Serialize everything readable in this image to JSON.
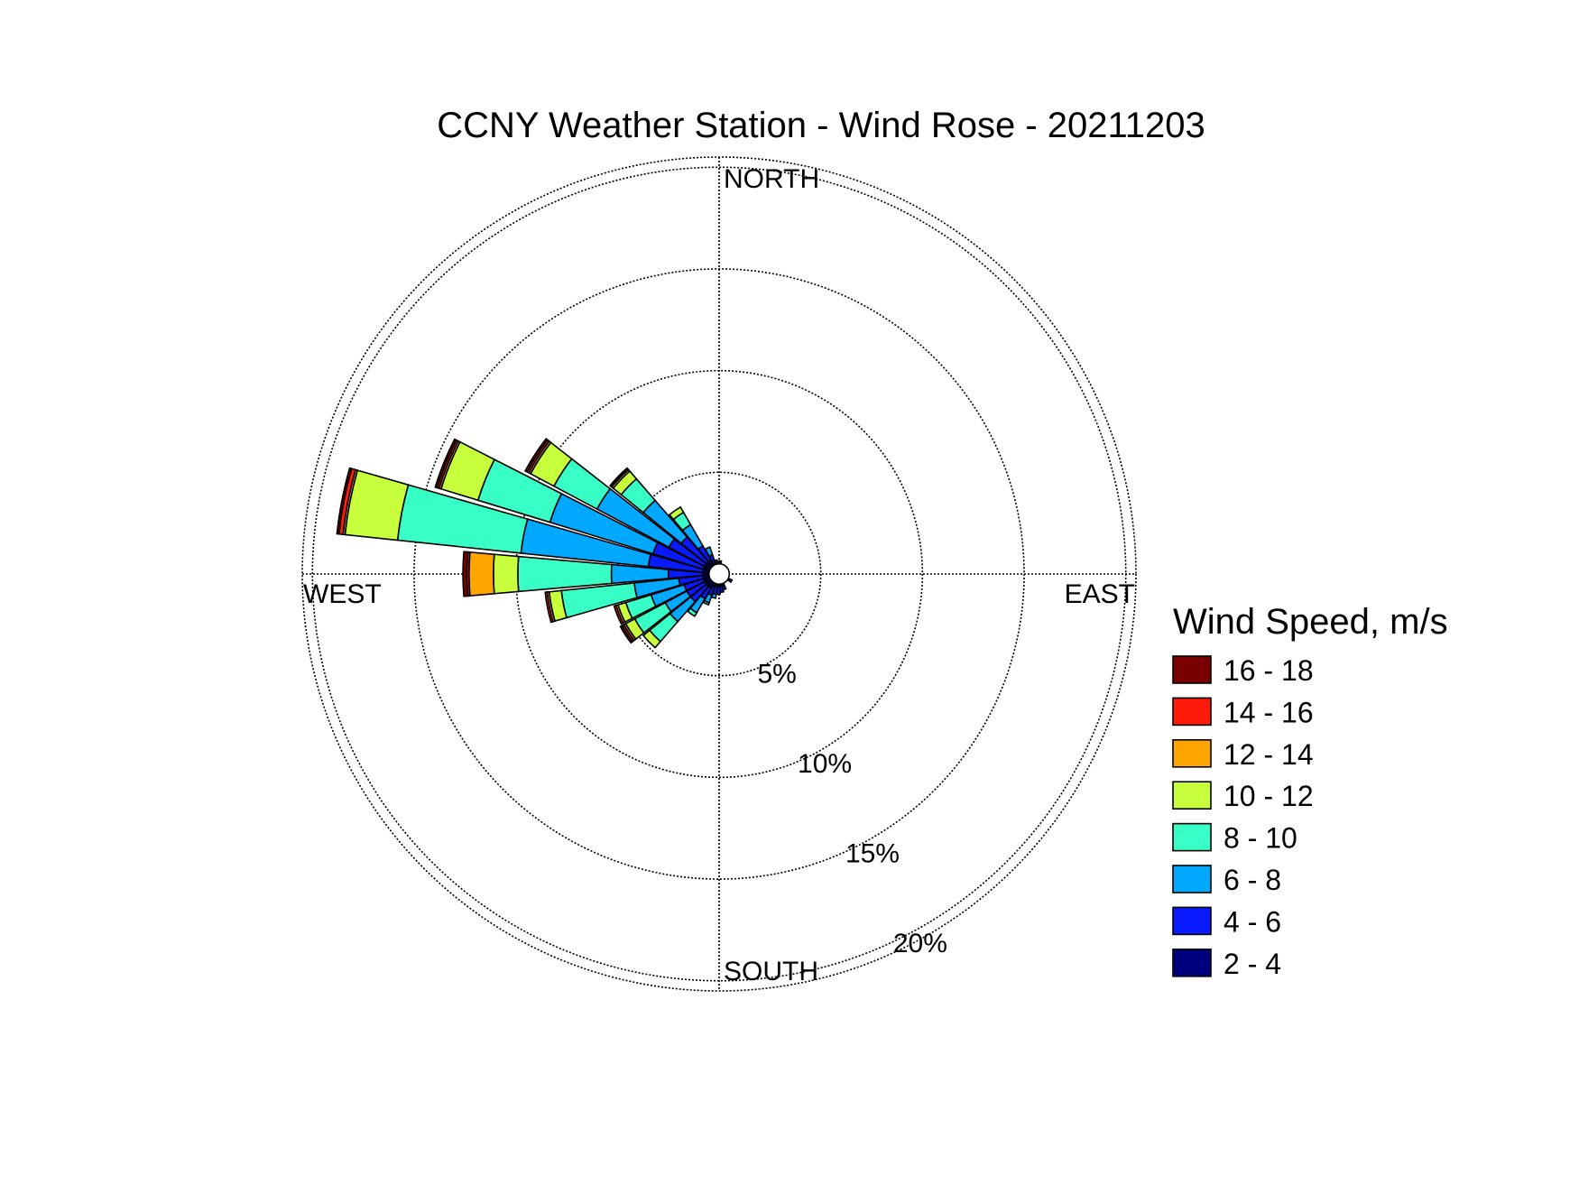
{
  "chart_data": {
    "type": "windrose",
    "title": "CCNY Weather Station - Wind Rose - 20211203",
    "direction_labels": {
      "north": "NORTH",
      "east": "EAST",
      "south": "SOUTH",
      "west": "WEST"
    },
    "radial_ticks": [
      5,
      10,
      15,
      20
    ],
    "radial_tick_labels": [
      "5%",
      "10%",
      "15%",
      "20%"
    ],
    "rmax": 20.5,
    "legend": {
      "title": "Wind Speed, m/s",
      "bins": [
        {
          "label": "16 - 18",
          "color": "#7a0000"
        },
        {
          "label": "14 - 16",
          "color": "#ff1a0a"
        },
        {
          "label": "12 - 14",
          "color": "#ffa500"
        },
        {
          "label": "10 - 12",
          "color": "#c8ff3c"
        },
        {
          "label": "8 - 10",
          "color": "#37ffc6"
        },
        {
          "label": "6 - 8",
          "color": "#00a9ff"
        },
        {
          "label": "4 - 6",
          "color": "#0a1aff"
        },
        {
          "label": "2 - 4",
          "color": "#00007f"
        }
      ]
    },
    "bin_order_inner_to_outer": [
      "2 - 4",
      "4 - 6",
      "6 - 8",
      "8 - 10",
      "10 - 12",
      "12 - 14",
      "14 - 16",
      "16 - 18"
    ],
    "sectors": [
      {
        "direction_deg": 270,
        "cumulative_pct": [
          0.8,
          2.5,
          5.3,
          9.9,
          11.1,
          12.3,
          12.4,
          12.6
        ]
      },
      {
        "direction_deg": 281,
        "cumulative_pct": [
          0.8,
          3.5,
          9.8,
          15.9,
          18.5,
          18.6,
          18.8,
          18.9
        ]
      },
      {
        "direction_deg": 292,
        "cumulative_pct": [
          0.8,
          3.4,
          8.7,
          12.4,
          14.3,
          14.4,
          14.5,
          14.6
        ]
      },
      {
        "direction_deg": 303,
        "cumulative_pct": [
          0.8,
          2.8,
          6.8,
          9.2,
          10.5,
          10.6,
          10.7,
          10.8
        ]
      },
      {
        "direction_deg": 314,
        "cumulative_pct": [
          0.8,
          2.4,
          4.8,
          6.2,
          6.7,
          6.8,
          6.85,
          6.9
        ]
      },
      {
        "direction_deg": 325,
        "cumulative_pct": [
          0.8,
          1.6,
          2.8,
          3.5,
          3.8
        ]
      },
      {
        "direction_deg": 336,
        "cumulative_pct": [
          0.6,
          1.0,
          1.4
        ]
      },
      {
        "direction_deg": 347,
        "cumulative_pct": [
          0.6,
          0.7
        ]
      },
      {
        "direction_deg": 259,
        "cumulative_pct": [
          0.8,
          2.0,
          4.2,
          7.8,
          8.4,
          8.5,
          8.6
        ]
      },
      {
        "direction_deg": 248,
        "cumulative_pct": [
          0.8,
          1.8,
          3.5,
          4.8,
          5.2,
          5.3,
          5.4
        ]
      },
      {
        "direction_deg": 237,
        "cumulative_pct": [
          0.8,
          1.8,
          3.0,
          4.7,
          5.2,
          5.3,
          5.4,
          5.5
        ]
      },
      {
        "direction_deg": 226,
        "cumulative_pct": [
          0.8,
          1.8,
          3.1,
          4.4,
          4.8
        ]
      },
      {
        "direction_deg": 215,
        "cumulative_pct": [
          0.8,
          1.4,
          2.2,
          2.4
        ]
      },
      {
        "direction_deg": 204,
        "cumulative_pct": [
          0.7,
          1.1,
          1.5,
          1.6
        ]
      },
      {
        "direction_deg": 193,
        "cumulative_pct": [
          0.6,
          1.0,
          1.2
        ]
      },
      {
        "direction_deg": 182,
        "cumulative_pct": [
          0.6,
          1.0
        ]
      },
      {
        "direction_deg": 171,
        "cumulative_pct": [
          0.6,
          0.9
        ]
      },
      {
        "direction_deg": 160,
        "cumulative_pct": [
          0.6,
          0.8
        ]
      },
      {
        "direction_deg": 120,
        "cumulative_pct": [
          0.55,
          0.7
        ]
      },
      {
        "direction_deg": 5,
        "cumulative_pct": [
          0.55,
          0.65
        ]
      }
    ],
    "grid": true
  }
}
